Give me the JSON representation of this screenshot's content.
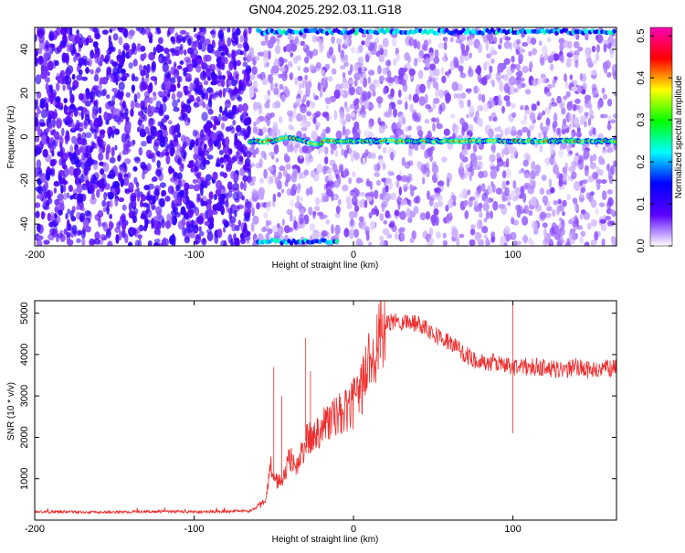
{
  "title": "GN04.2025.292.03.11.G18",
  "chart_data": [
    {
      "type": "heatmap",
      "xlabel": "Height of straight line (km)",
      "ylabel": "Frequency (Hz)",
      "xlim": [
        -200,
        165
      ],
      "ylim": [
        -50,
        50
      ],
      "xticks": [
        -200,
        -100,
        0,
        100
      ],
      "yticks": [
        -40,
        -20,
        0,
        20,
        40
      ],
      "colorbar": {
        "label": "Normalized spectral amplitude",
        "range": [
          0,
          0.52
        ],
        "ticks": [
          0,
          0.1,
          0.2,
          0.3,
          0.4,
          0.5
        ],
        "tick_labels": [
          "0.0",
          "0.1",
          "0.2",
          "0.3",
          "0.4",
          "0.5"
        ],
        "colors": [
          "#ffffff",
          "#5a00ff",
          "#0000ff",
          "#00ffff",
          "#00ff00",
          "#ffff00",
          "#ff0000",
          "#ff00b4"
        ]
      },
      "features": [
        {
          "description": "dense noise",
          "x_range": [
            -200,
            -65
          ],
          "amplitude": 0.08
        },
        {
          "description": "sparse noise",
          "x_range": [
            -65,
            165
          ],
          "amplitude": 0.04
        },
        {
          "description": "signal line",
          "x_range": [
            -65,
            165
          ],
          "frequency_hz": -2,
          "amplitude": 0.35
        },
        {
          "description": "edge band",
          "x_range": [
            -60,
            165
          ],
          "frequency_hz": 48,
          "amplitude": 0.2
        },
        {
          "description": "edge band",
          "x_range": [
            -60,
            -10
          ],
          "frequency_hz": -48,
          "amplitude": 0.2
        }
      ]
    },
    {
      "type": "line",
      "xlabel": "Height of straight line (km)",
      "ylabel": "SNR (10 * v/v)",
      "xlim": [
        -200,
        165
      ],
      "ylim": [
        0,
        5300
      ],
      "xticks": [
        -200,
        -100,
        0,
        100
      ],
      "yticks": [
        1000,
        2000,
        3000,
        4000,
        5000
      ],
      "color": "#ee3030",
      "series": [
        {
          "x": [
            -200,
            -180,
            -160,
            -140,
            -120,
            -100,
            -80,
            -65,
            -55,
            -52,
            -50,
            -45,
            -40,
            -35,
            -30,
            -25,
            -20,
            -15,
            -10,
            -5,
            0,
            5,
            10,
            15,
            20,
            25,
            30,
            35,
            40,
            45,
            50,
            55,
            60,
            70,
            80,
            90,
            100,
            110,
            120,
            130,
            140,
            150,
            165
          ],
          "y": [
            200,
            200,
            190,
            200,
            210,
            200,
            210,
            220,
            450,
            1300,
            1000,
            900,
            1500,
            1300,
            1900,
            2000,
            2300,
            2400,
            2500,
            2600,
            2800,
            3200,
            3900,
            4300,
            4700,
            4800,
            4800,
            4800,
            4750,
            4700,
            4500,
            4400,
            4300,
            4000,
            3800,
            3800,
            3700,
            3700,
            3700,
            3600,
            3700,
            3600,
            3700
          ]
        }
      ]
    }
  ]
}
